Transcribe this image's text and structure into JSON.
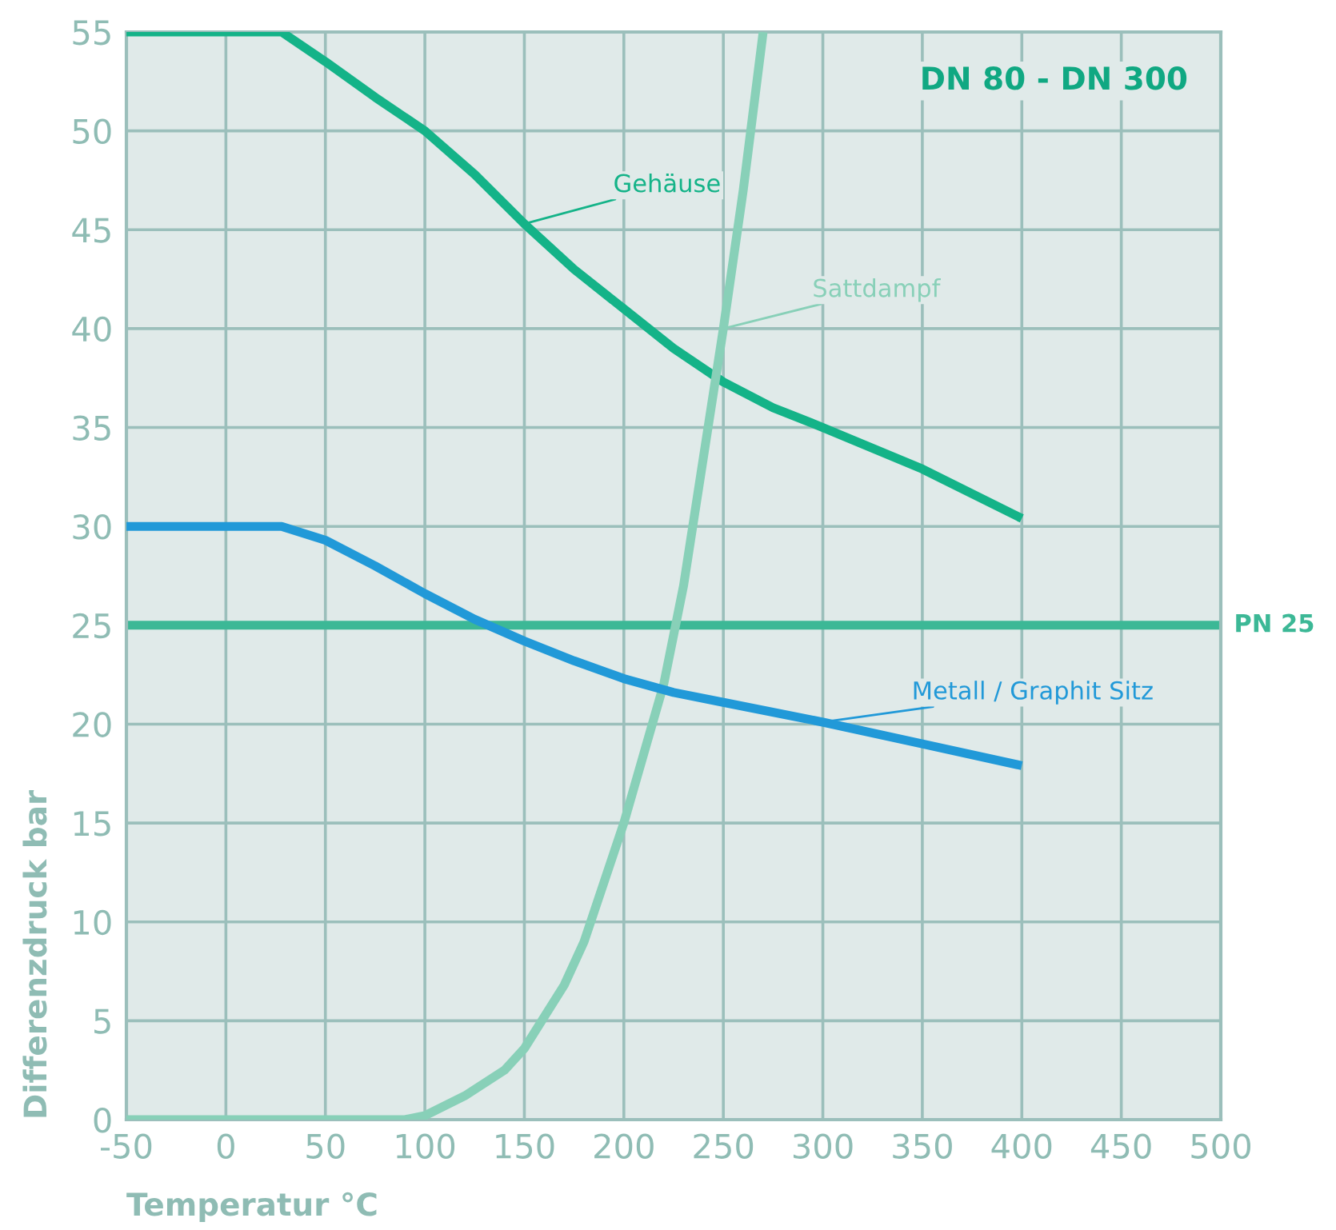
{
  "chart_data": {
    "type": "line",
    "xlabel": "Temperatur °C",
    "ylabel": "Differenzdruck bar",
    "xlim": [
      -50,
      500
    ],
    "ylim": [
      0,
      55
    ],
    "xticks": [
      -50,
      0,
      50,
      100,
      150,
      200,
      250,
      300,
      350,
      400,
      450,
      500
    ],
    "yticks": [
      0,
      5,
      10,
      15,
      20,
      25,
      30,
      35,
      40,
      45,
      50,
      55
    ],
    "grid": true,
    "legend": false,
    "marker": "none",
    "line_style": "solid",
    "series": [
      {
        "name": "Gehäuse",
        "color": "#14b388",
        "x": [
          -50,
          0,
          28,
          50,
          75,
          100,
          125,
          150,
          175,
          200,
          225,
          250,
          275,
          300,
          350,
          400
        ],
        "values": [
          55,
          55,
          55,
          53.5,
          51.7,
          50,
          47.8,
          45.3,
          43,
          41,
          39,
          37.3,
          36,
          35,
          32.9,
          30.4
        ]
      },
      {
        "name": "Sattdampf",
        "color": "#88d0b8",
        "x": [
          -50,
          0,
          50,
          90,
          100,
          120,
          140,
          150,
          170,
          180,
          200,
          220,
          230,
          240,
          250,
          260,
          270
        ],
        "values": [
          0,
          0,
          0,
          0,
          0.2,
          1.2,
          2.5,
          3.6,
          6.8,
          9,
          15,
          22,
          27,
          33.5,
          40,
          47,
          55
        ]
      },
      {
        "name": "Metall / Graphit Sitz",
        "color": "#2199d8",
        "x": [
          -50,
          0,
          28,
          50,
          75,
          100,
          125,
          150,
          175,
          200,
          225,
          250,
          300,
          350,
          400
        ],
        "values": [
          30,
          30,
          30,
          29.3,
          28,
          26.6,
          25.3,
          24.2,
          23.2,
          22.3,
          21.6,
          21.1,
          20.1,
          19,
          17.9
        ]
      }
    ],
    "ref_lines": [
      {
        "axis": "y",
        "value": 25,
        "label": "PN 25",
        "color": "#3cb896"
      }
    ],
    "annotations": [
      "DN 80 - DN 300"
    ]
  }
}
